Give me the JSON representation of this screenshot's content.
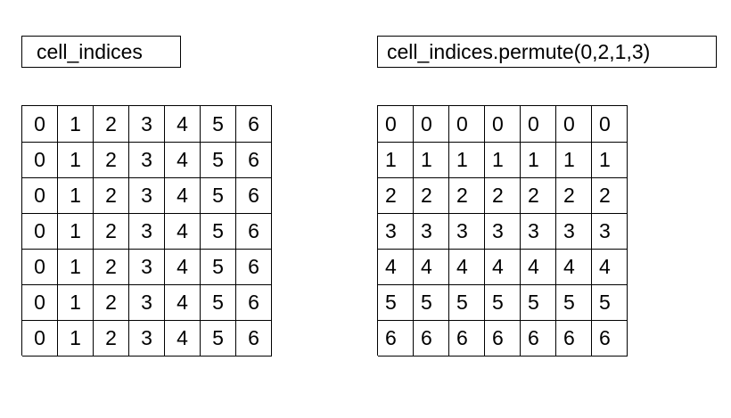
{
  "left": {
    "label": "cell_indices",
    "grid": [
      [
        "0",
        "1",
        "2",
        "3",
        "4",
        "5",
        "6"
      ],
      [
        "0",
        "1",
        "2",
        "3",
        "4",
        "5",
        "6"
      ],
      [
        "0",
        "1",
        "2",
        "3",
        "4",
        "5",
        "6"
      ],
      [
        "0",
        "1",
        "2",
        "3",
        "4",
        "5",
        "6"
      ],
      [
        "0",
        "1",
        "2",
        "3",
        "4",
        "5",
        "6"
      ],
      [
        "0",
        "1",
        "2",
        "3",
        "4",
        "5",
        "6"
      ],
      [
        "0",
        "1",
        "2",
        "3",
        "4",
        "5",
        "6"
      ]
    ]
  },
  "right": {
    "label": "cell_indices.permute(0,2,1,3)",
    "grid": [
      [
        "0",
        "0",
        "0",
        "0",
        "0",
        "0",
        "0"
      ],
      [
        "1",
        "1",
        "1",
        "1",
        "1",
        "1",
        "1"
      ],
      [
        "2",
        "2",
        "2",
        "2",
        "2",
        "2",
        "2"
      ],
      [
        "3",
        "3",
        "3",
        "3",
        "3",
        "3",
        "3"
      ],
      [
        "4",
        "4",
        "4",
        "4",
        "4",
        "4",
        "4"
      ],
      [
        "5",
        "5",
        "5",
        "5",
        "5",
        "5",
        "5"
      ],
      [
        "6",
        "6",
        "6",
        "6",
        "6",
        "6",
        "6"
      ]
    ]
  }
}
